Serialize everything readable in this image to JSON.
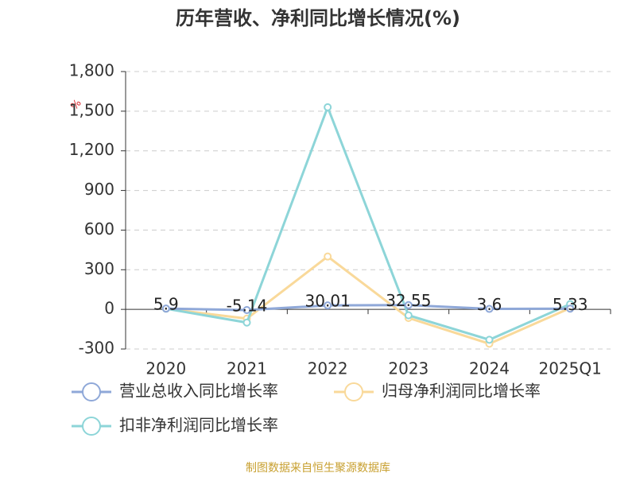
{
  "chart_data": {
    "type": "line",
    "title": "历年营收、净利同比增长情况(%)",
    "y_unit": "%",
    "categories": [
      "2020",
      "2021",
      "2022",
      "2023",
      "2024",
      "2025Q1"
    ],
    "series": [
      {
        "name": "营业总收入同比增长率",
        "color": "#8fa8d8",
        "values": [
          5.9,
          -5.14,
          30.01,
          32.55,
          3.6,
          5.33
        ],
        "show_labels": true
      },
      {
        "name": "归母净利润同比增长率",
        "color": "#f9d99a",
        "values": [
          5,
          -70,
          400,
          -65,
          -260,
          10
        ],
        "show_labels": false
      },
      {
        "name": "扣非净利润同比增长率",
        "color": "#8dd5d8",
        "values": [
          5,
          -100,
          1530,
          -45,
          -230,
          40
        ],
        "show_labels": false
      }
    ],
    "ylim": [
      -300,
      1800
    ],
    "yticks": [
      -300,
      0,
      300,
      600,
      900,
      {
        "value": 1200,
        "label": "1,200"
      },
      {
        "value": 1500,
        "label": "1,500"
      },
      {
        "value": 1800,
        "label": "1,800"
      }
    ],
    "grid": true,
    "source": "制图数据来自恒生聚源数据库"
  }
}
